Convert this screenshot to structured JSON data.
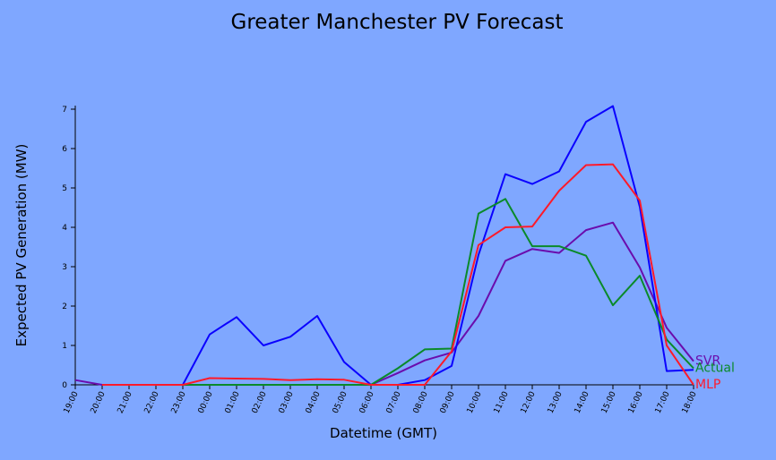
{
  "chart_data": {
    "type": "line",
    "title": "Greater Manchester PV Forecast",
    "xlabel": "Datetime (GMT)",
    "ylabel": "Expected PV Generation (MW)",
    "ylim": [
      0,
      7
    ],
    "categories": [
      "19:00",
      "20:00",
      "21:00",
      "22:00",
      "23:00",
      "00:00",
      "01:00",
      "02:00",
      "03:00",
      "04:00",
      "05:00",
      "06:00",
      "07:00",
      "08:00",
      "09:00",
      "10:00",
      "11:00",
      "12:00",
      "13:00",
      "14:00",
      "15:00",
      "16:00",
      "17:00",
      "18:00"
    ],
    "y_ticks": [
      0,
      1,
      2,
      3,
      4,
      5,
      6,
      7
    ],
    "grid": false,
    "series": [
      {
        "name": "SVR",
        "color": "#6a0dad",
        "values": [
          0.12,
          0,
          0,
          0,
          0,
          0,
          0,
          0,
          0,
          0,
          0,
          0,
          0.3,
          0.62,
          0.82,
          1.75,
          3.15,
          3.45,
          3.35,
          3.93,
          4.12,
          2.98,
          1.45,
          0.6
        ]
      },
      {
        "name": "SVR",
        "color": "#0a00ff",
        "label_visible": false,
        "values": [
          null,
          0,
          0,
          0,
          0,
          1.28,
          1.72,
          1.0,
          1.22,
          1.75,
          0.58,
          0,
          0,
          0.12,
          0.48,
          3.3,
          5.35,
          5.1,
          5.42,
          6.68,
          7.08,
          4.52,
          0.35,
          0.38
        ]
      },
      {
        "name": "Actual",
        "color": "#0a8a2a",
        "values": [
          null,
          0,
          0,
          0,
          0,
          0,
          0,
          0,
          0,
          0,
          0,
          0,
          0.42,
          0.9,
          0.92,
          4.35,
          4.72,
          3.52,
          3.52,
          3.28,
          2.02,
          2.77,
          1.15,
          0.42
        ]
      },
      {
        "name": "MLP",
        "color": "#ff1a2a",
        "values": [
          null,
          0,
          0,
          0,
          0,
          0.17,
          0.16,
          0.15,
          0.12,
          0.14,
          0.13,
          0,
          0,
          0,
          0.85,
          3.55,
          4.0,
          4.02,
          4.93,
          5.58,
          5.6,
          4.68,
          1.0,
          0
        ]
      }
    ]
  }
}
